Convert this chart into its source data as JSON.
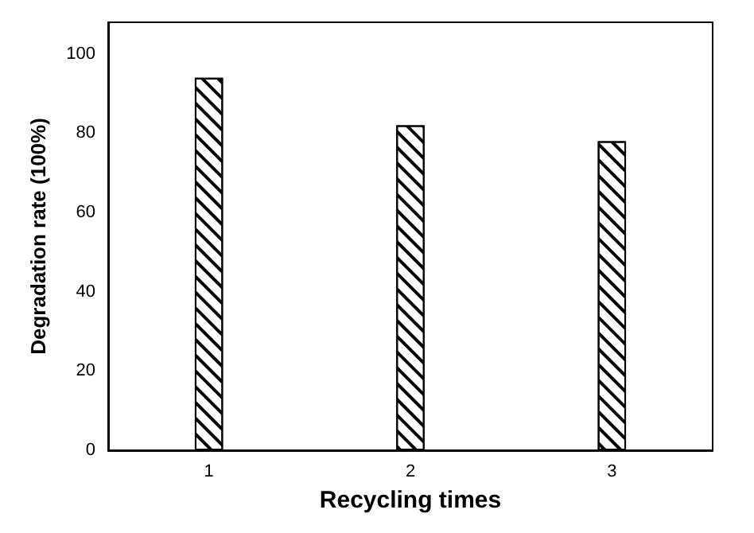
{
  "chart_data": {
    "type": "bar",
    "xlabel": "Recycling times",
    "ylabel": "Degradation rate (100%)",
    "categories": [
      "1",
      "2",
      "3"
    ],
    "values": [
      94,
      82,
      78
    ],
    "color": "#000000",
    "ylim": [
      0,
      108
    ],
    "yticks": [
      0,
      20,
      40,
      60,
      80,
      100
    ],
    "grid": false
  }
}
